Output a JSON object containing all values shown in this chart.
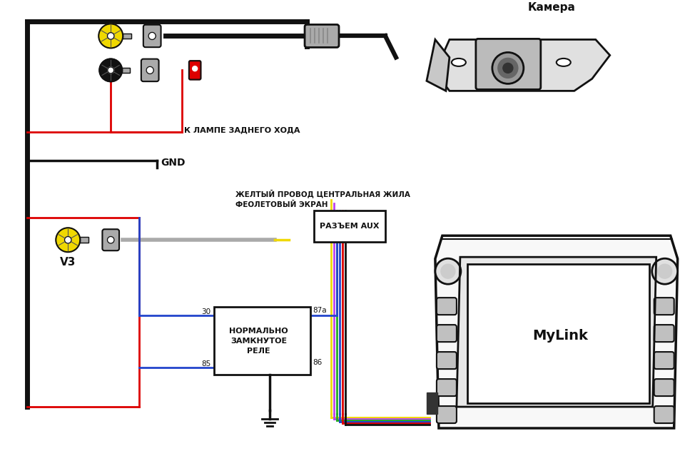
{
  "bg_color": "#ffffff",
  "camera_label": "Камера",
  "v3_label": "V3",
  "gnd_label": "GND",
  "lamp_label": "К ЛАМПЕ ЗАДНЕГО ХОДА",
  "yellow_label": "ЖЕЛТЫЙ ПРОВОД ЦЕНТРАЛЬНАЯ ЖИЛА",
  "violet_label": "ФЕОЛЕТОВЫЙ ЭКРАН",
  "aux_label": "РАЗЪЕМ AUX",
  "relay_label": "НОРМАЛЬНО\nЗАМКНУТОЕ\nРЕЛЕ",
  "mylink_label": "MyLink",
  "relay_30": "30",
  "relay_85": "85",
  "relay_87a": "87а",
  "relay_86": "86",
  "col_yellow": "#f0d800",
  "col_purple": "#bb44ee",
  "col_green": "#22aa22",
  "col_blue": "#2244cc",
  "col_red": "#dd0000",
  "col_black": "#111111",
  "col_gray": "#aaaaaa",
  "col_darkgray": "#555555",
  "col_lightgray": "#e0e0e0",
  "lw": 2.0
}
